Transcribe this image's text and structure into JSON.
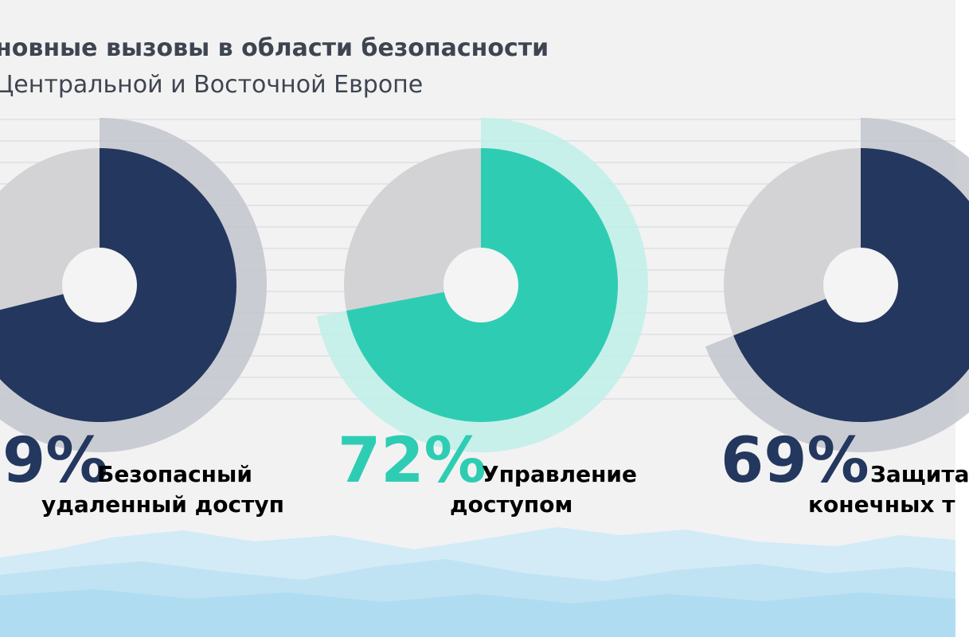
{
  "title": {
    "line1": "новные вызовы в области безопасности",
    "line2": "Центральной и Восточной Европе"
  },
  "colors": {
    "navy": "#24375e",
    "teal": "#2ecdb3",
    "teal_light": "#bff0e8",
    "gray_segment": "#d3d3d5",
    "gray_ring": "#c3c6cd",
    "background": "#f2f2f3",
    "waves": [
      "#d3ebf6",
      "#bfe3f3",
      "#afdcf0"
    ]
  },
  "chart_data": {
    "type": "pie",
    "variant": "donut",
    "items": [
      {
        "value_text": "9%",
        "label_lines": [
          "Безопасный",
          "удаленный доступ"
        ],
        "color": "navy",
        "value_visible": false
      },
      {
        "value": 72,
        "value_text": "72%",
        "label_lines": [
          "Управление",
          "доступом"
        ],
        "color": "teal"
      },
      {
        "value": 69,
        "value_text": "69%",
        "label_lines": [
          "Защита",
          "конечных т"
        ],
        "color": "navy"
      }
    ]
  }
}
